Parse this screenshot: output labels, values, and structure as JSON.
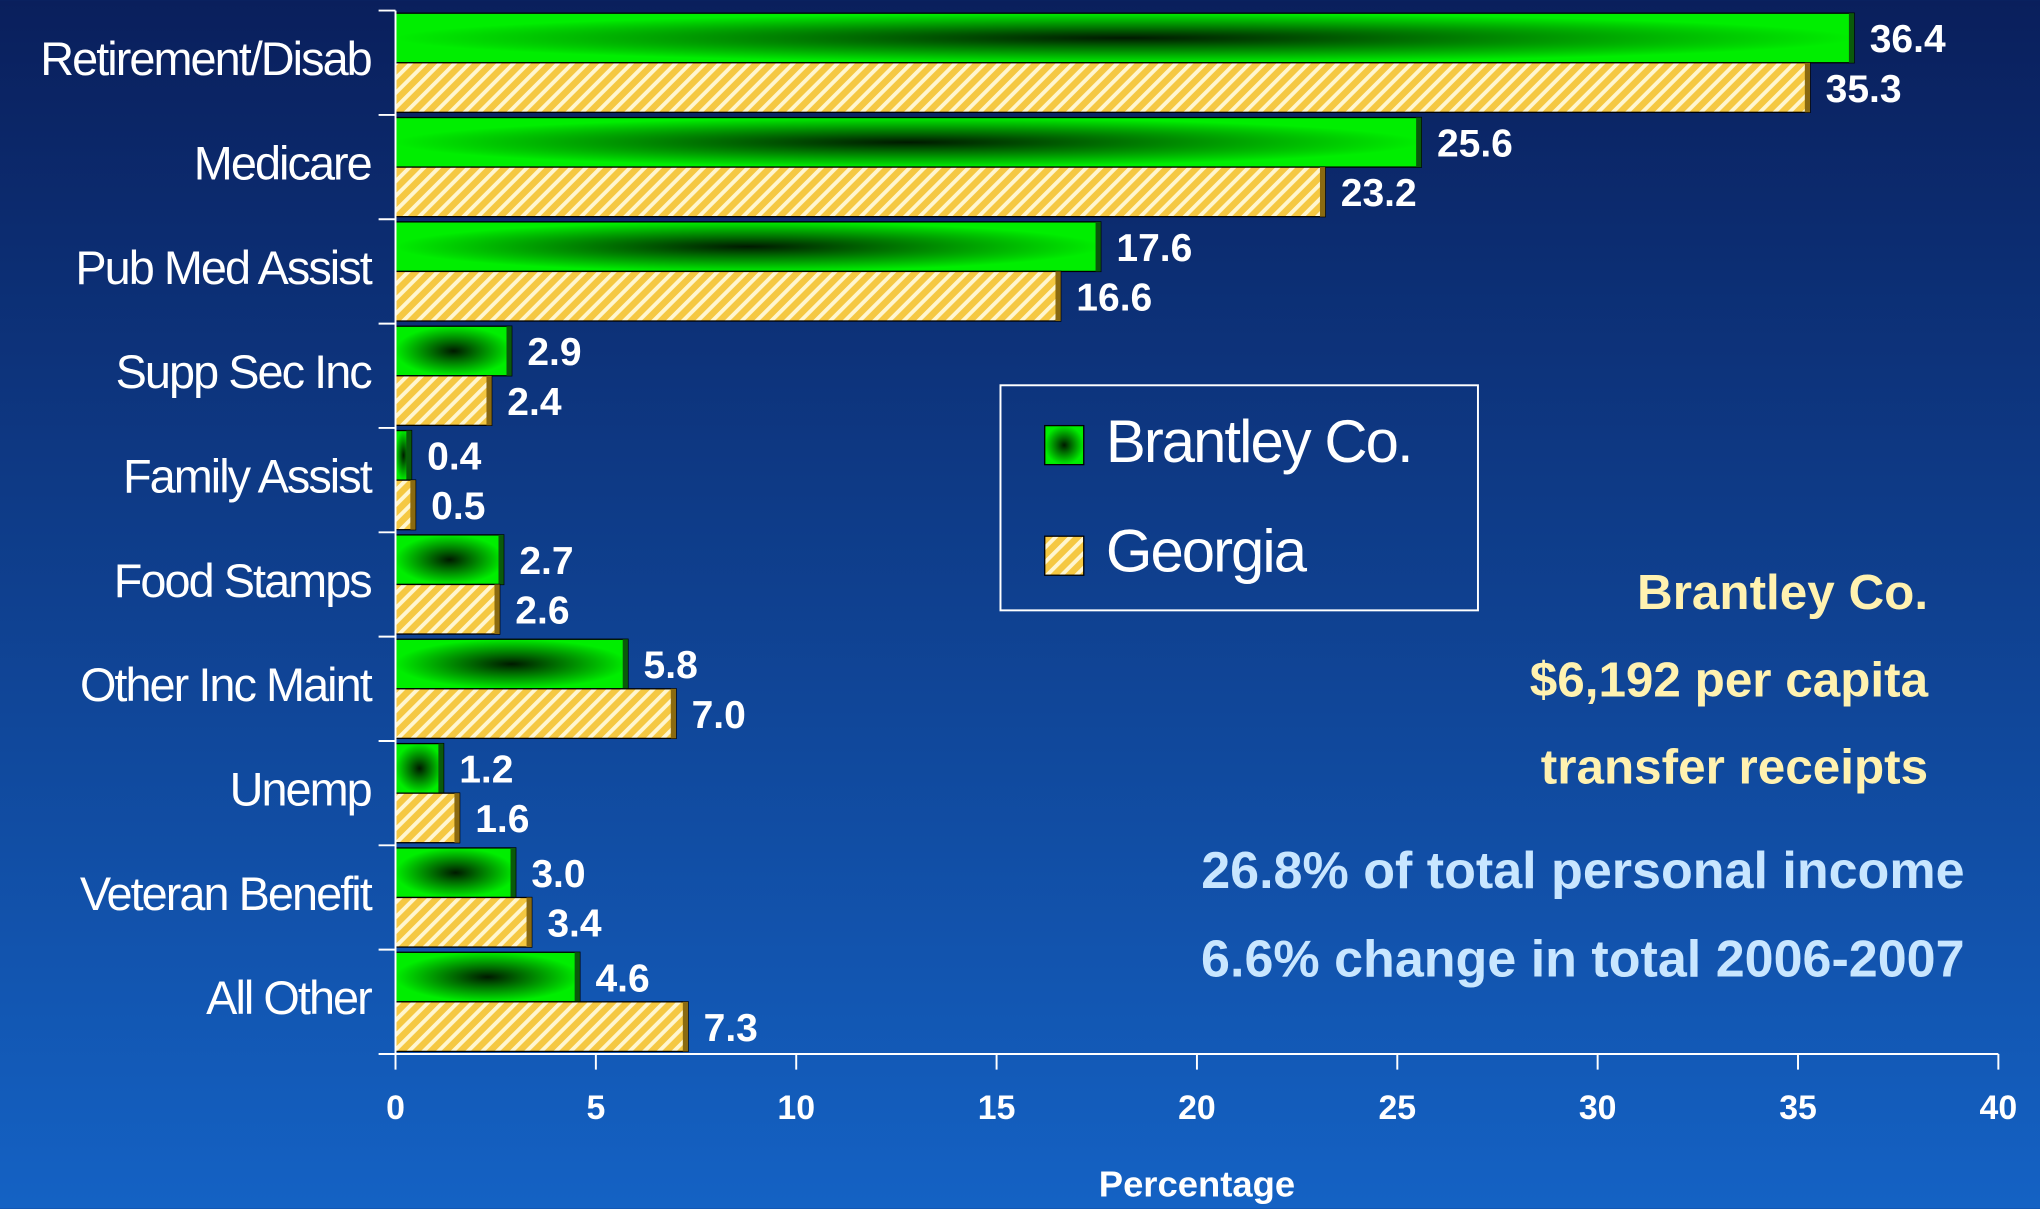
{
  "chart_data": {
    "type": "bar",
    "orientation": "horizontal",
    "categories": [
      "Retirement/Disab",
      "Medicare",
      "Pub Med Assist",
      "Supp Sec Inc",
      "Family Assist",
      "Food Stamps",
      "Other Inc Maint",
      "Unemp",
      "Veteran Benefit",
      "All Other"
    ],
    "series": [
      {
        "name": "Brantley Co.",
        "color": "#00e000",
        "values": [
          36.4,
          25.6,
          17.6,
          2.9,
          0.4,
          2.7,
          5.8,
          1.2,
          3.0,
          4.6
        ],
        "value_labels": [
          "36.4",
          "25.6",
          "17.6",
          "2.9",
          "0.4",
          "2.7",
          "5.8",
          "1.2",
          "3.0",
          "4.6"
        ]
      },
      {
        "name": "Georgia",
        "color": "#f5c842",
        "values": [
          35.3,
          23.2,
          16.6,
          2.4,
          0.5,
          2.6,
          7.0,
          1.6,
          3.4,
          7.3
        ],
        "value_labels": [
          "35.3",
          "23.2",
          "16.6",
          "2.4",
          "0.5",
          "2.6",
          "7.0",
          "1.6",
          "3.4",
          "7.3"
        ]
      }
    ],
    "xlabel": "Percentage",
    "xlim": [
      0,
      40
    ],
    "xticks": [
      0,
      5,
      10,
      15,
      20,
      25,
      30,
      35,
      40
    ],
    "annotations": [
      "Brantley Co.",
      "$6,192  per capita",
      "transfer receipts",
      "26.8% of total personal income",
      "6.6% change in total 2006-2007"
    ]
  }
}
